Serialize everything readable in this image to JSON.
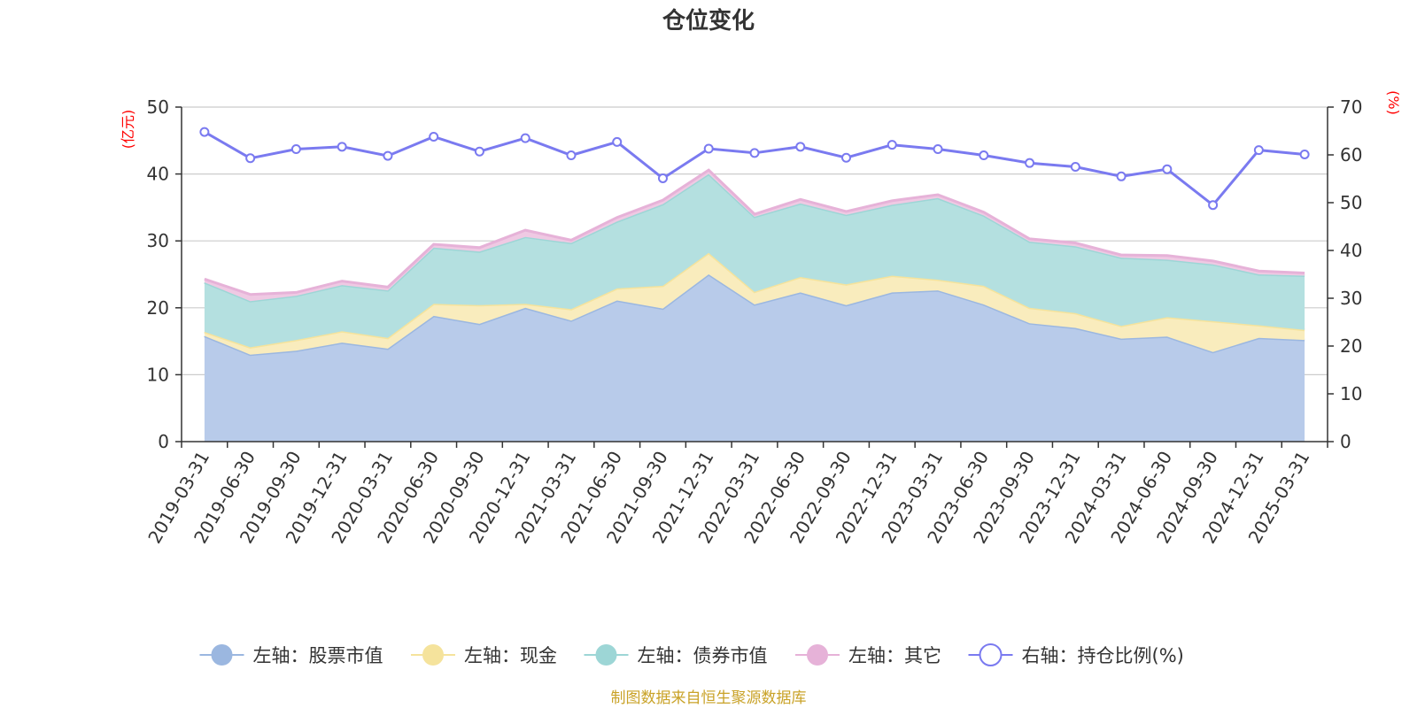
{
  "chart_data": {
    "type": "area",
    "title": "仓位变化",
    "left_unit": "(亿元)",
    "right_unit": "(%)",
    "x": [
      "2019-03-31",
      "2019-06-30",
      "2019-09-30",
      "2019-12-31",
      "2020-03-31",
      "2020-06-30",
      "2020-09-30",
      "2020-12-31",
      "2021-03-31",
      "2021-06-30",
      "2021-09-30",
      "2021-12-31",
      "2022-03-31",
      "2022-06-30",
      "2022-09-30",
      "2022-12-31",
      "2023-03-31",
      "2023-06-30",
      "2023-09-30",
      "2023-12-31",
      "2024-03-31",
      "2024-06-30",
      "2024-09-30",
      "2024-12-31",
      "2025-03-31"
    ],
    "left_ylim": [
      0,
      50
    ],
    "left_ticks": [
      0,
      10,
      20,
      30,
      40,
      50
    ],
    "right_ylim": [
      0,
      70
    ],
    "right_ticks": [
      0,
      10,
      20,
      30,
      40,
      50,
      60,
      70
    ],
    "grid": true,
    "legend_position": "bottom",
    "stacked": true,
    "series": [
      {
        "name": "左轴：股票市值",
        "axis": "left",
        "kind": "area",
        "color": "#9bb7e0",
        "fill": "#b8cbea",
        "values": [
          15.8,
          13.0,
          13.6,
          14.8,
          13.9,
          18.8,
          17.6,
          20.0,
          18.1,
          21.1,
          19.9,
          25.0,
          20.5,
          22.3,
          20.4,
          22.3,
          22.6,
          20.5,
          17.7,
          17.0,
          15.4,
          15.7,
          13.4,
          15.5,
          15.2
        ]
      },
      {
        "name": "左轴：现金",
        "axis": "left",
        "kind": "area",
        "color": "#f5e39c",
        "fill": "#f9ecbd",
        "values": [
          0.6,
          1.1,
          1.6,
          1.7,
          1.6,
          1.8,
          2.8,
          0.6,
          1.7,
          1.8,
          3.4,
          3.2,
          1.9,
          2.3,
          3.1,
          2.5,
          1.6,
          2.8,
          2.3,
          2.2,
          1.9,
          2.9,
          4.6,
          1.9,
          1.5
        ]
      },
      {
        "name": "左轴：债券市值",
        "axis": "left",
        "kind": "area",
        "color": "#9dd6d6",
        "fill": "#b4e0e0",
        "values": [
          7.4,
          6.9,
          6.6,
          6.9,
          7.1,
          8.4,
          8.0,
          10.0,
          9.9,
          10.0,
          12.2,
          11.8,
          11.2,
          11.0,
          10.4,
          10.6,
          12.2,
          10.5,
          9.9,
          10.0,
          10.2,
          8.6,
          8.5,
          7.6,
          8.1
        ]
      },
      {
        "name": "左轴：其它",
        "axis": "left",
        "kind": "area",
        "color": "#e6b2d8",
        "fill": "#efc9e3",
        "values": [
          0.5,
          1.0,
          0.5,
          0.6,
          0.5,
          0.5,
          0.6,
          1.0,
          0.4,
          0.6,
          0.6,
          0.6,
          0.4,
          0.6,
          0.5,
          0.6,
          0.5,
          0.5,
          0.4,
          0.5,
          0.4,
          0.6,
          0.5,
          0.5,
          0.4
        ]
      },
      {
        "name": "右轴：持仓比例(%)",
        "axis": "right",
        "kind": "line",
        "color": "#7a7af0",
        "values": [
          64.8,
          59.3,
          61.2,
          61.7,
          59.8,
          63.8,
          60.7,
          63.5,
          59.9,
          62.7,
          55.1,
          61.3,
          60.4,
          61.7,
          59.4,
          62.1,
          61.2,
          59.9,
          58.3,
          57.5,
          55.5,
          57.0,
          49.5,
          61.0,
          60.1
        ]
      }
    ]
  },
  "source_text": "制图数据来自恒生聚源数据库"
}
